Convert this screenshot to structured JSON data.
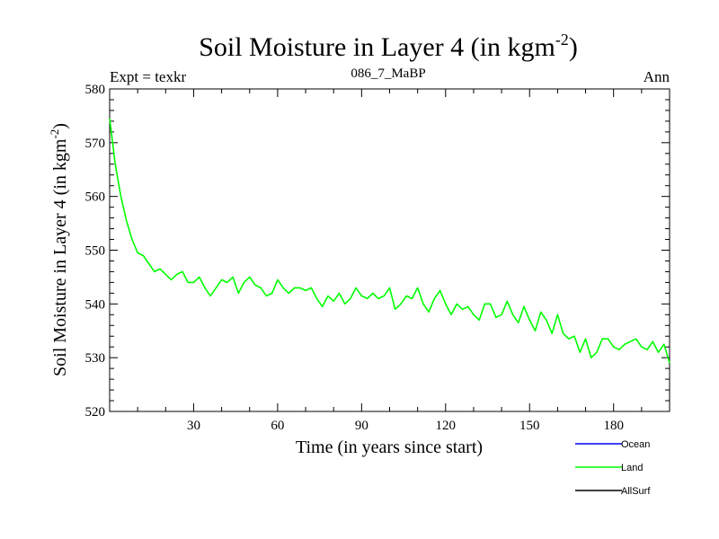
{
  "chart_data": {
    "type": "line",
    "title": {
      "main": "Soil Moisture in Layer 4 (in kgm",
      "sup": "-2",
      "close": ")"
    },
    "subtitle_left": "Expt = texkr",
    "subtitle_center": "086_7_MaBP",
    "subtitle_right": "Ann",
    "xlabel": "Time (in years since start)",
    "ylabel": {
      "main": "Soil Moisture in Layer 4 (in kgm",
      "sup": "-2",
      "close": ")"
    },
    "xlim": [
      0,
      200
    ],
    "ylim": [
      520,
      580
    ],
    "xticks": [
      30,
      60,
      90,
      120,
      150,
      180
    ],
    "yticks": [
      520,
      530,
      540,
      550,
      560,
      570,
      580
    ],
    "legend": [
      {
        "name": "Ocean",
        "color": "#0000ff"
      },
      {
        "name": "Land",
        "color": "#00ff00"
      },
      {
        "name": "AllSurf",
        "color": "#000000"
      }
    ],
    "series": [
      {
        "name": "Land",
        "color": "#00ff00",
        "x": [
          0,
          2,
          4,
          6,
          8,
          10,
          12,
          14,
          16,
          18,
          20,
          22,
          24,
          26,
          28,
          30,
          32,
          34,
          36,
          38,
          40,
          42,
          44,
          46,
          48,
          50,
          52,
          54,
          56,
          58,
          60,
          62,
          64,
          66,
          68,
          70,
          72,
          74,
          76,
          78,
          80,
          82,
          84,
          86,
          88,
          90,
          92,
          94,
          96,
          98,
          100,
          102,
          104,
          106,
          108,
          110,
          112,
          114,
          116,
          118,
          120,
          122,
          124,
          126,
          128,
          130,
          132,
          134,
          136,
          138,
          140,
          142,
          144,
          146,
          148,
          150,
          152,
          154,
          156,
          158,
          160,
          162,
          164,
          166,
          168,
          170,
          172,
          174,
          176,
          178,
          180,
          182,
          184,
          186,
          188,
          190,
          192,
          194,
          196,
          198,
          200
        ],
        "values": [
          574.5,
          566,
          560,
          555.5,
          552,
          549.5,
          549,
          547.5,
          546,
          546.5,
          545.5,
          544.5,
          545.5,
          546,
          544,
          544,
          545,
          543,
          541.5,
          543,
          544.5,
          544,
          545,
          542,
          544,
          545,
          543.5,
          543,
          541.5,
          542,
          544.5,
          543,
          542,
          543,
          543,
          542.5,
          543,
          541,
          539.5,
          541.5,
          540.5,
          542,
          540,
          541,
          543,
          541.5,
          541,
          542,
          541,
          541.5,
          543,
          539,
          540,
          541.5,
          541,
          543,
          540,
          538.5,
          541,
          542.5,
          540,
          538,
          540,
          539,
          539.5,
          538,
          537,
          540,
          540,
          537.5,
          538,
          540.5,
          538,
          536.5,
          539.5,
          537,
          535,
          538.5,
          537,
          534.5,
          538,
          534.5,
          533.5,
          534,
          531,
          533.5,
          530,
          531,
          533.5,
          533.5,
          532,
          531.5,
          532.5,
          533,
          533.5,
          532,
          531.5,
          533,
          531,
          532.5,
          529
        ]
      }
    ]
  }
}
